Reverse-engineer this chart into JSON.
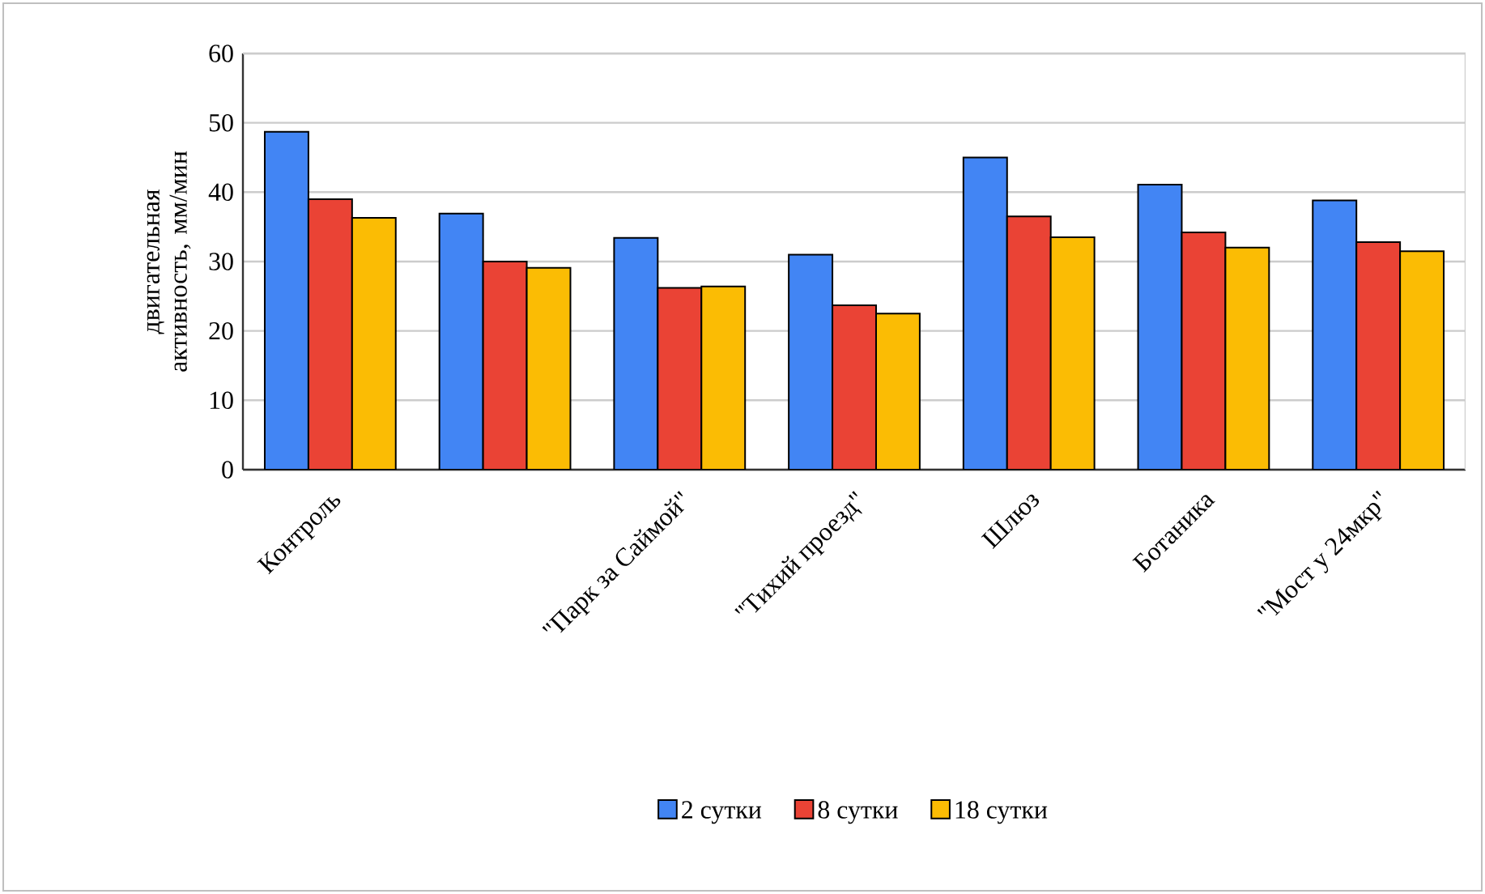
{
  "chart_data": {
    "type": "bar",
    "ylabel": "двигательная активность, мм/мин",
    "categories": [
      "Контроль",
      null,
      "\"Парк за Саймой\"",
      "\"Тихий проезд\"",
      "Шлюз",
      "Ботаника",
      "\"Мост у 24мкр\""
    ],
    "series": [
      {
        "name": "2 сутки",
        "color": "#4285f4",
        "values": [
          48.7,
          36.9,
          33.4,
          31.0,
          45.0,
          41.1,
          38.8
        ]
      },
      {
        "name": "8 сутки",
        "color": "#ea4335",
        "values": [
          39.0,
          30.0,
          26.2,
          23.7,
          36.5,
          34.2,
          32.8
        ]
      },
      {
        "name": "18 сутки",
        "color": "#fbbc04",
        "values": [
          36.3,
          29.1,
          26.4,
          22.5,
          33.5,
          32.0,
          31.5
        ]
      }
    ],
    "ylim": [
      0,
      60
    ],
    "yticks": [
      0,
      10,
      20,
      30,
      40,
      50,
      60
    ],
    "grid": "y",
    "legend": "bottom"
  }
}
